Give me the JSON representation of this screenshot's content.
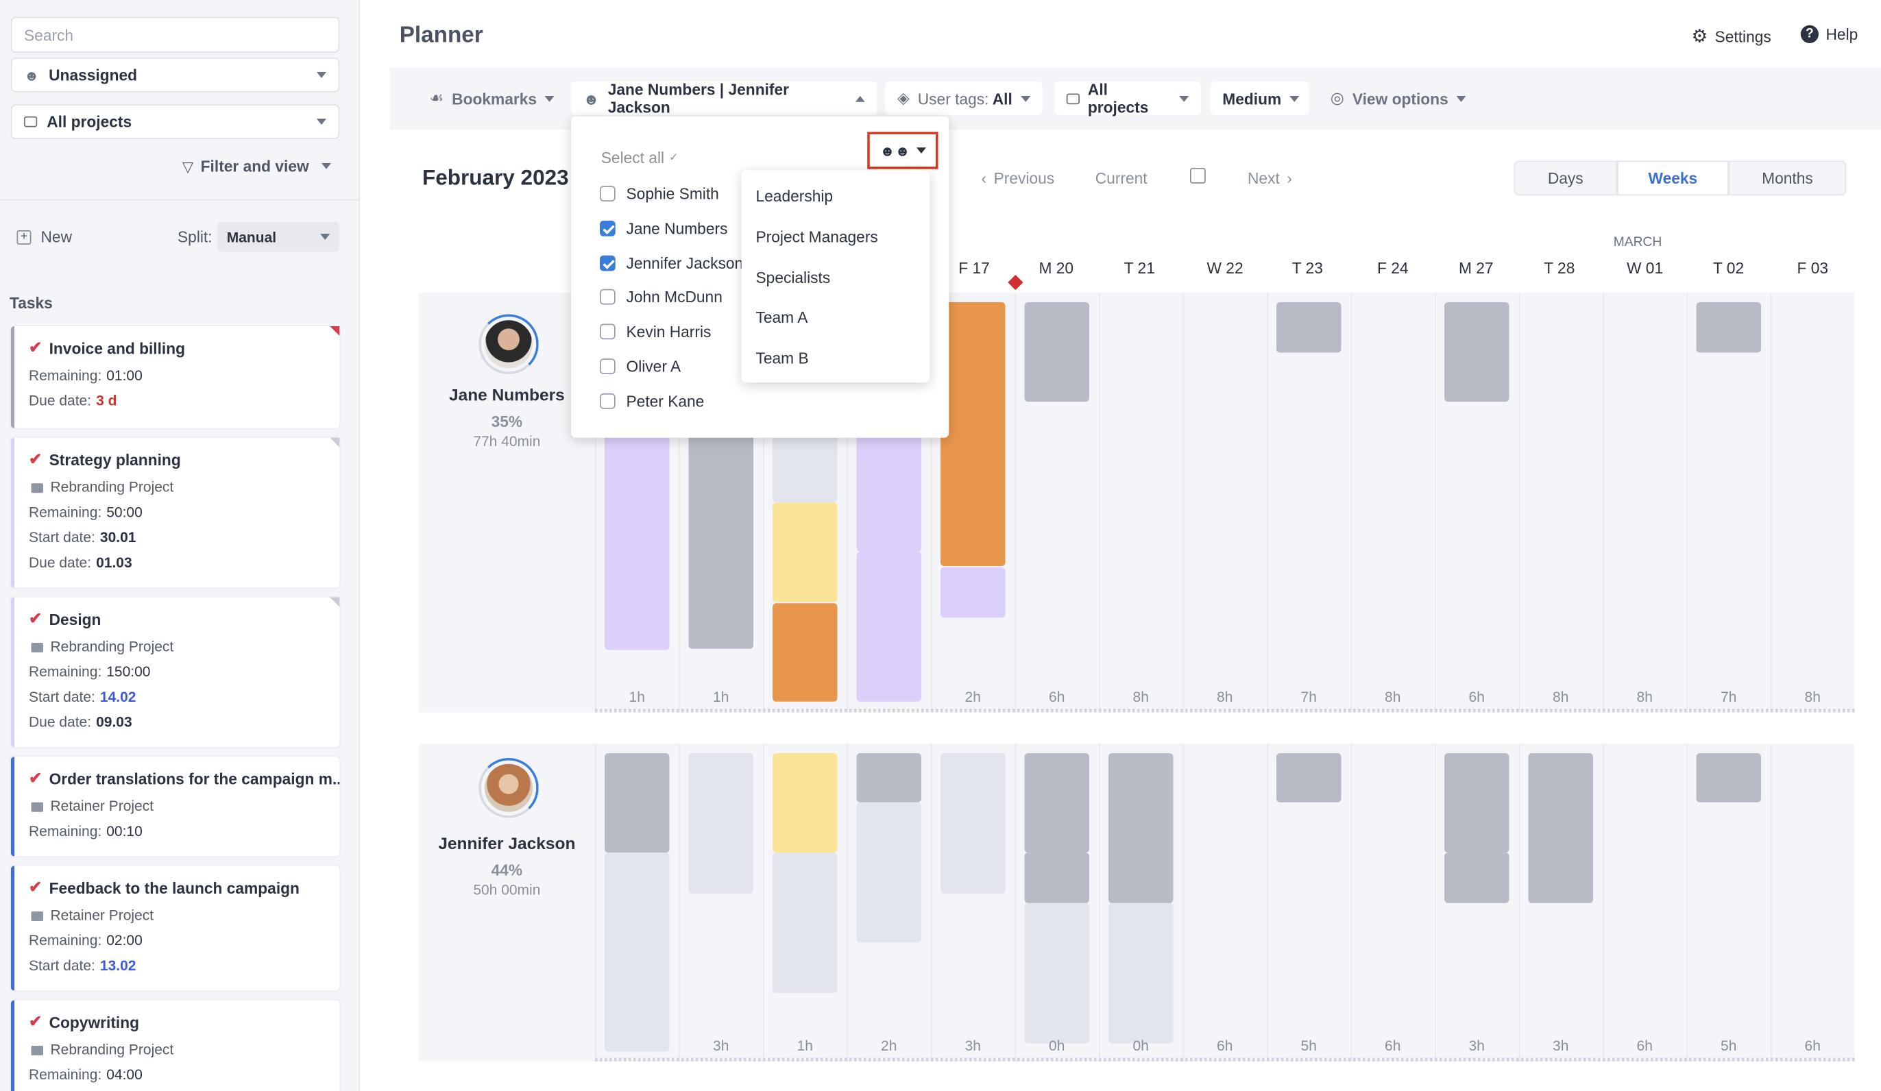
{
  "sidebar": {
    "search_placeholder": "Search",
    "assignee": "Unassigned",
    "projects": "All projects",
    "filter_label": "Filter and view",
    "new_label": "New",
    "split_label": "Split:",
    "split_value": "Manual",
    "tasks_heading": "Tasks",
    "tasks": [
      {
        "title": "Invoice and billing",
        "lines": [
          {
            "k": "Remaining:",
            "v": "01:00"
          },
          {
            "k": "Due date:",
            "v": "3 d",
            "color": "#d0312d"
          }
        ]
      },
      {
        "title": "Strategy planning",
        "project": "Rebranding Project",
        "lines": [
          {
            "k": "Remaining:",
            "v": "50:00"
          },
          {
            "k": "Start date:",
            "v": "30.01"
          },
          {
            "k": "Due date:",
            "v": "01.03"
          }
        ]
      },
      {
        "title": "Design",
        "project": "Rebranding Project",
        "lines": [
          {
            "k": "Remaining:",
            "v": "150:00"
          },
          {
            "k": "Start date:",
            "v": "14.02",
            "color": "#3b5bdb"
          },
          {
            "k": "Due date:",
            "v": "09.03"
          }
        ]
      },
      {
        "title": "Order translations for the campaign m...",
        "project": "Retainer Project",
        "lines": [
          {
            "k": "Remaining:",
            "v": "00:10"
          }
        ]
      },
      {
        "title": "Feedback to the launch campaign",
        "project": "Retainer Project",
        "lines": [
          {
            "k": "Remaining:",
            "v": "02:00"
          },
          {
            "k": "Start date:",
            "v": "13.02",
            "color": "#3b5bdb"
          }
        ]
      },
      {
        "title": "Copywriting",
        "project": "Rebranding Project",
        "lines": [
          {
            "k": "Remaining:",
            "v": "04:00"
          }
        ]
      }
    ]
  },
  "header": {
    "title": "Planner",
    "settings": "Settings",
    "help": "Help"
  },
  "toolbar": {
    "bookmarks": "Bookmarks",
    "people": "Jane Numbers | Jennifer Jackson",
    "user_tags_label": "User tags:",
    "user_tags_value": "All",
    "projects": "All projects",
    "size": "Medium",
    "view_options": "View options"
  },
  "nav": {
    "month": "February 2023",
    "previous": "Previous",
    "current": "Current",
    "next": "Next",
    "days": "Days",
    "weeks": "Weeks",
    "months": "Months",
    "active": "Weeks",
    "month_marker": "MARCH"
  },
  "dates": [
    "F 17",
    "M 20",
    "T 21",
    "W 22",
    "T 23",
    "F 24",
    "M 27",
    "T 28",
    "W 01",
    "T 02",
    "F 03"
  ],
  "people_dropdown": {
    "select_all": "Select all",
    "people": [
      {
        "name": "Sophie Smith",
        "checked": false
      },
      {
        "name": "Jane Numbers",
        "checked": true
      },
      {
        "name": "Jennifer Jackson",
        "checked": true
      },
      {
        "name": "John McDunn",
        "checked": false
      },
      {
        "name": "Kevin Harris",
        "checked": false
      },
      {
        "name": "Oliver A",
        "checked": false
      },
      {
        "name": "Peter Kane",
        "checked": false
      }
    ]
  },
  "group_menu": [
    "Leadership",
    "Project Managers",
    "Specialists",
    "Team A",
    "Team B"
  ],
  "users": [
    {
      "name": "Jane Numbers",
      "percent": "35%",
      "hours": "77h 40min",
      "day_hours": [
        "1h",
        "1h",
        "",
        "",
        "2h",
        "6h",
        "8h",
        "8h",
        "7h",
        "8h",
        "6h",
        "8h",
        "8h",
        "7h",
        "8h"
      ]
    },
    {
      "name": "Jennifer Jackson",
      "percent": "44%",
      "hours": "50h 00min",
      "day_hours": [
        "",
        "3h",
        "1h",
        "2h",
        "3h",
        "0h",
        "0h",
        "6h",
        "5h",
        "6h",
        "3h",
        "3h",
        "6h",
        "5h",
        "6h"
      ]
    }
  ],
  "colors": {
    "accent": "#3b7ddd",
    "purple": "#dccffa",
    "gray": "#b6bbc6",
    "light": "#e2e5ee",
    "orange": "#e8964b",
    "yellow": "#fae597",
    "today_marker": "#d0312d"
  }
}
